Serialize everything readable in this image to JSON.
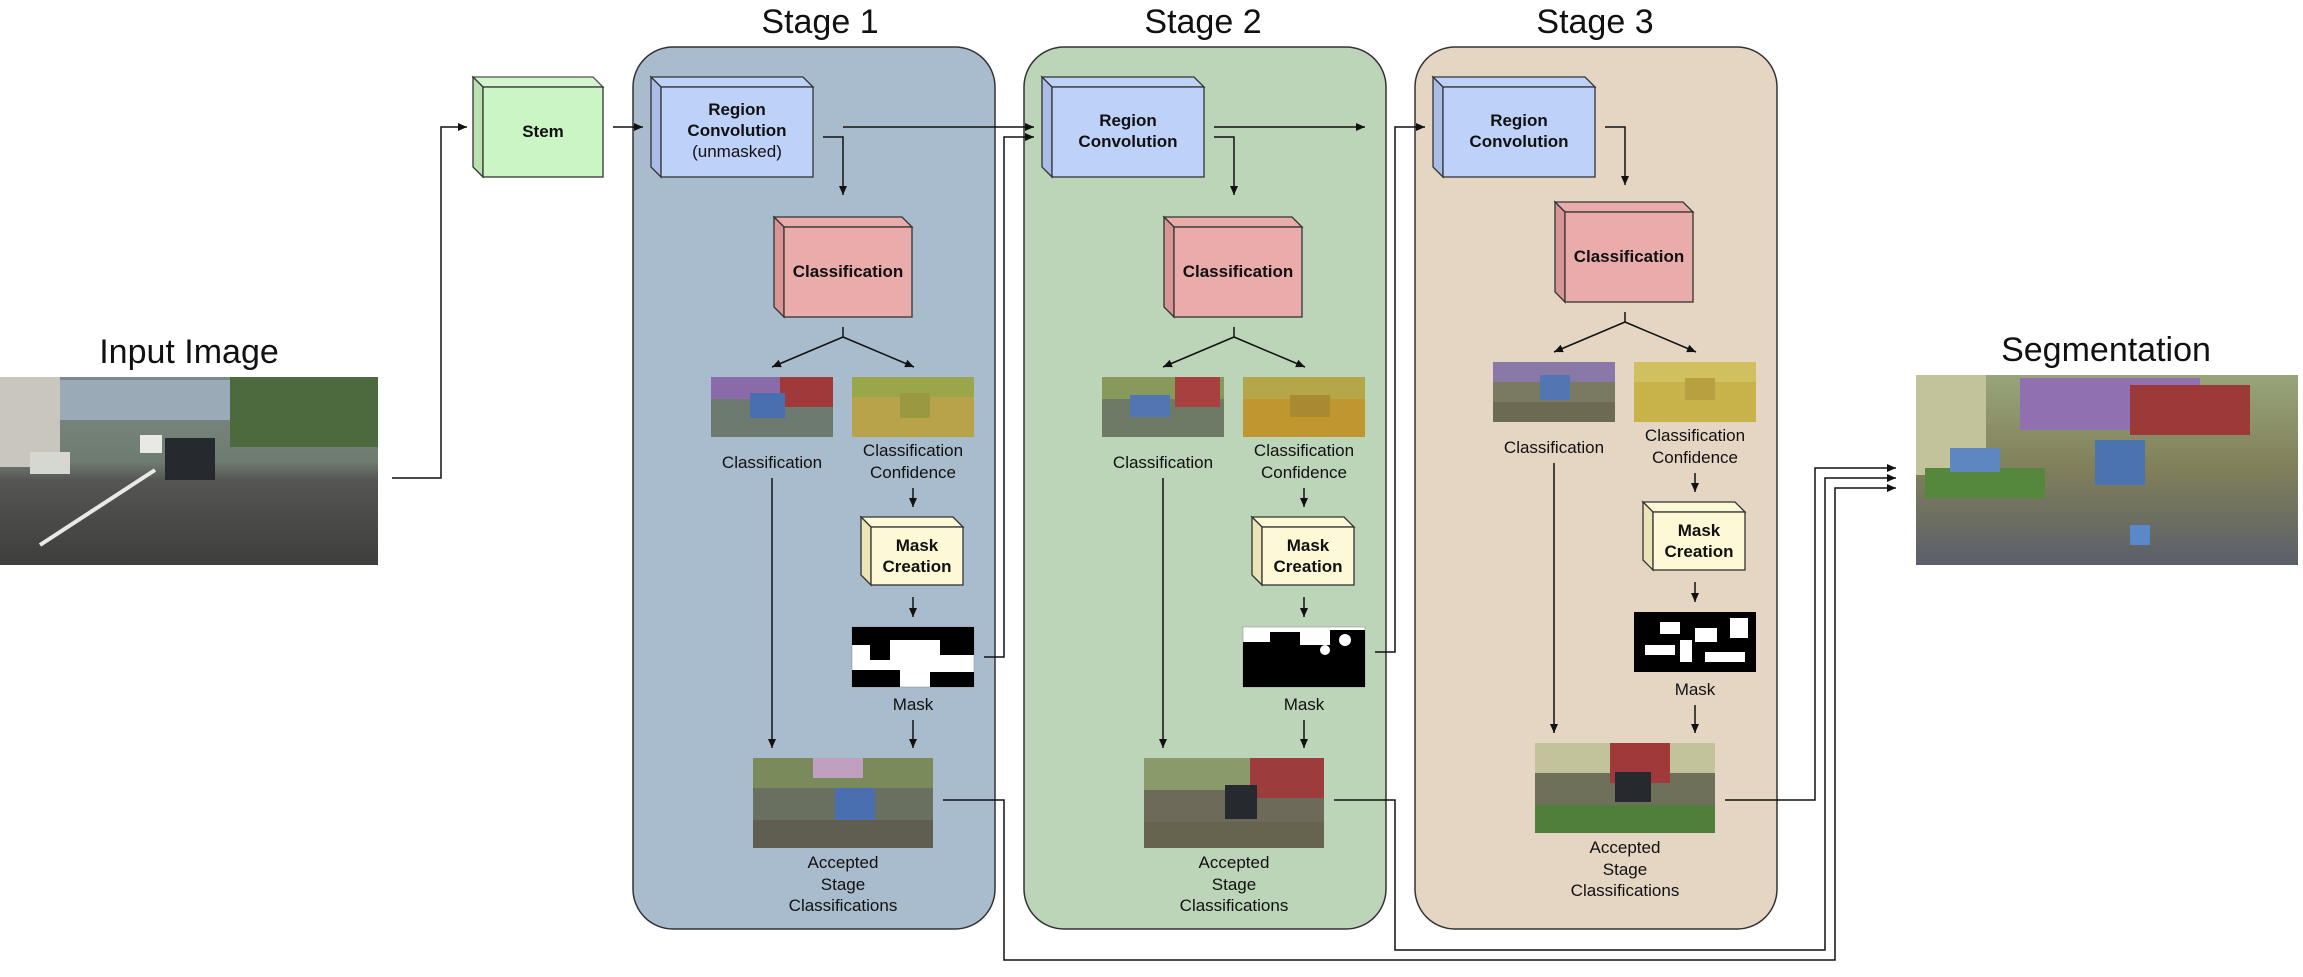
{
  "titles": {
    "input_image": "Input Image",
    "stage1": "Stage 1",
    "stage2": "Stage 2",
    "stage3": "Stage 3",
    "segmentation": "Segmentation"
  },
  "blocks": {
    "stem": "Stem",
    "region_conv_line1": "Region",
    "region_conv_line2": "Convolution",
    "unmasked": "(unmasked)",
    "classification": "Classification",
    "mask_creation_line1": "Mask",
    "mask_creation_line2": "Creation"
  },
  "labels": {
    "classification": "Classification",
    "confidence_line1": "Classification",
    "confidence_line2": "Confidence",
    "mask": "Mask",
    "accepted_line1": "Accepted",
    "accepted_line2": "Stage",
    "accepted_line3": "Classifications"
  },
  "colors": {
    "stage1_bg": "#a9bccd",
    "stage2_bg": "#bcd4b8",
    "stage3_bg": "#e5d6c4",
    "stem": "#ccf5c6",
    "region_conv": "#bed1f8",
    "classification": "#eaabab",
    "mask_creation": "#fdf8d5"
  }
}
